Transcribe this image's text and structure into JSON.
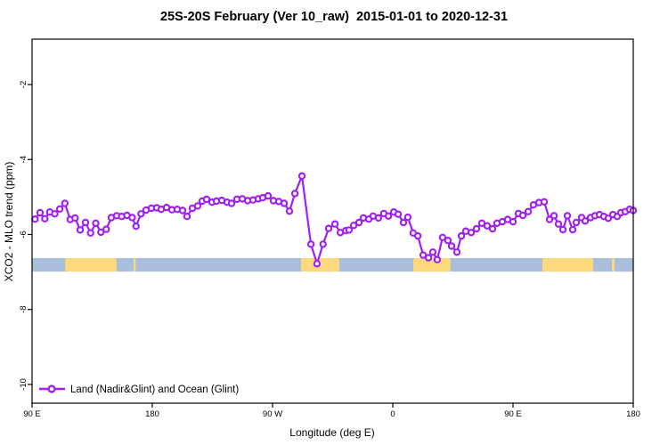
{
  "chart_data": {
    "type": "line",
    "title": "25S-20S February (Ver 10_raw)  2015-01-01 to 2020-12-31",
    "xlabel": "Longitude (deg E)",
    "ylabel": "XCO2 - MLO trend (ppm)",
    "legend_label": "Land (Nadir&Glint) and Ocean (Glint)",
    "legend_position": "bottom-left-inside",
    "grid": false,
    "x_axis": {
      "range_deg_east": [
        90,
        540
      ],
      "ticks": [
        {
          "value": 90,
          "label": "90 E"
        },
        {
          "value": 180,
          "label": "180"
        },
        {
          "value": 270,
          "label": "90 W"
        },
        {
          "value": 360,
          "label": "0"
        },
        {
          "value": 450,
          "label": "90 E"
        },
        {
          "value": 540,
          "label": "180"
        }
      ]
    },
    "y_axis": {
      "range": [
        -10.5,
        -0.79
      ],
      "ticks": [
        {
          "value": -2,
          "label": "-2"
        },
        {
          "value": -4,
          "label": "-4"
        },
        {
          "value": -6,
          "label": "-6"
        },
        {
          "value": -8,
          "label": "-8"
        },
        {
          "value": -10,
          "label": "-10"
        }
      ]
    },
    "line_color": "#A020F0",
    "marker": {
      "shape": "open-circle",
      "fill": "#FFFFFF",
      "radius": 3.1,
      "stroke_width": 2.2
    },
    "band": {
      "description": "surface-type strip: ocean (blue) with land (yellow) segments",
      "y_top": -6.63,
      "y_bottom": -6.99,
      "ocean_color": "#A9BEDA",
      "land_color": "#FCD87E",
      "land_segments_lon": [
        [
          114.7,
          153.3
        ],
        [
          166.0,
          167.5
        ],
        [
          291.3,
          320.0
        ],
        [
          375.3,
          403.3
        ],
        [
          472.0,
          510.0
        ],
        [
          524.0,
          526.0
        ]
      ]
    },
    "series": [
      {
        "name": "Land (Nadir&Glint) and Ocean (Glint)",
        "points": [
          [
            92.2,
            -5.59
          ],
          [
            96.0,
            -5.42
          ],
          [
            99.5,
            -5.58
          ],
          [
            103.3,
            -5.4
          ],
          [
            107.0,
            -5.45
          ],
          [
            110.7,
            -5.32
          ],
          [
            114.5,
            -5.17
          ],
          [
            118.5,
            -5.6
          ],
          [
            122.2,
            -5.56
          ],
          [
            126.0,
            -5.88
          ],
          [
            130.0,
            -5.68
          ],
          [
            133.8,
            -5.96
          ],
          [
            137.7,
            -5.7
          ],
          [
            141.5,
            -5.94
          ],
          [
            145.5,
            -5.86
          ],
          [
            149.3,
            -5.55
          ],
          [
            153.3,
            -5.5
          ],
          [
            157.1,
            -5.52
          ],
          [
            161.1,
            -5.49
          ],
          [
            164.9,
            -5.55
          ],
          [
            167.8,
            -5.78
          ],
          [
            171.5,
            -5.45
          ],
          [
            175.3,
            -5.35
          ],
          [
            179.3,
            -5.3
          ],
          [
            183.3,
            -5.29
          ],
          [
            186.7,
            -5.33
          ],
          [
            190.7,
            -5.28
          ],
          [
            194.7,
            -5.34
          ],
          [
            198.7,
            -5.33
          ],
          [
            202.7,
            -5.36
          ],
          [
            206.0,
            -5.52
          ],
          [
            210.0,
            -5.3
          ],
          [
            214.0,
            -5.24
          ],
          [
            217.3,
            -5.11
          ],
          [
            220.7,
            -5.06
          ],
          [
            224.7,
            -5.14
          ],
          [
            228.0,
            -5.11
          ],
          [
            232.0,
            -5.09
          ],
          [
            236.0,
            -5.14
          ],
          [
            239.3,
            -5.17
          ],
          [
            243.3,
            -5.06
          ],
          [
            247.3,
            -5.05
          ],
          [
            251.3,
            -5.1
          ],
          [
            255.3,
            -5.08
          ],
          [
            259.3,
            -5.05
          ],
          [
            262.7,
            -5.02
          ],
          [
            266.7,
            -4.97
          ],
          [
            270.7,
            -5.1
          ],
          [
            274.7,
            -5.12
          ],
          [
            278.7,
            -5.17
          ],
          [
            282.7,
            -5.38
          ],
          [
            286.7,
            -4.91
          ],
          [
            292.0,
            -4.44
          ],
          [
            298.7,
            -6.26
          ],
          [
            303.3,
            -6.78
          ],
          [
            307.8,
            -6.26
          ],
          [
            312.0,
            -5.84
          ],
          [
            316.7,
            -5.72
          ],
          [
            320.7,
            -5.95
          ],
          [
            324.7,
            -5.9
          ],
          [
            327.3,
            -5.88
          ],
          [
            330.7,
            -5.76
          ],
          [
            334.7,
            -5.68
          ],
          [
            338.0,
            -5.56
          ],
          [
            342.0,
            -5.59
          ],
          [
            345.3,
            -5.51
          ],
          [
            349.3,
            -5.56
          ],
          [
            353.3,
            -5.44
          ],
          [
            356.7,
            -5.51
          ],
          [
            360.7,
            -5.4
          ],
          [
            364.0,
            -5.46
          ],
          [
            368.0,
            -5.68
          ],
          [
            371.3,
            -5.54
          ],
          [
            375.3,
            -5.96
          ],
          [
            378.7,
            -6.04
          ],
          [
            382.7,
            -6.55
          ],
          [
            386.7,
            -6.62
          ],
          [
            390.0,
            -6.47
          ],
          [
            393.3,
            -6.67
          ],
          [
            397.3,
            -6.08
          ],
          [
            401.3,
            -6.16
          ],
          [
            404.0,
            -6.31
          ],
          [
            408.0,
            -6.47
          ],
          [
            411.3,
            -6.04
          ],
          [
            414.7,
            -5.91
          ],
          [
            418.7,
            -5.95
          ],
          [
            422.7,
            -5.85
          ],
          [
            426.7,
            -5.7
          ],
          [
            430.7,
            -5.77
          ],
          [
            434.7,
            -5.85
          ],
          [
            438.0,
            -5.7
          ],
          [
            442.0,
            -5.66
          ],
          [
            446.0,
            -5.6
          ],
          [
            450.0,
            -5.66
          ],
          [
            454.0,
            -5.44
          ],
          [
            457.3,
            -5.49
          ],
          [
            461.3,
            -5.39
          ],
          [
            465.3,
            -5.21
          ],
          [
            469.3,
            -5.15
          ],
          [
            473.3,
            -5.13
          ],
          [
            477.3,
            -5.6
          ],
          [
            480.7,
            -5.5
          ],
          [
            484.0,
            -5.72
          ],
          [
            487.3,
            -5.87
          ],
          [
            490.7,
            -5.5
          ],
          [
            494.7,
            -5.87
          ],
          [
            497.3,
            -5.68
          ],
          [
            501.3,
            -5.55
          ],
          [
            504.0,
            -5.64
          ],
          [
            508.0,
            -5.55
          ],
          [
            511.3,
            -5.5
          ],
          [
            514.7,
            -5.47
          ],
          [
            518.0,
            -5.52
          ],
          [
            521.3,
            -5.57
          ],
          [
            524.7,
            -5.47
          ],
          [
            528.0,
            -5.52
          ],
          [
            530.7,
            -5.42
          ],
          [
            534.0,
            -5.39
          ],
          [
            537.3,
            -5.33
          ],
          [
            540.0,
            -5.36
          ]
        ]
      }
    ]
  }
}
